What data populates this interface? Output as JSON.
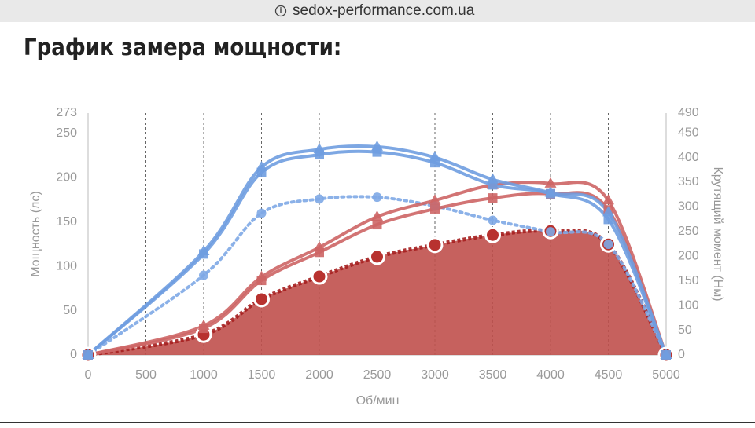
{
  "browser": {
    "url": "sedox-performance.com.ua"
  },
  "chart_data": {
    "type": "line",
    "title": "График замера мощности:",
    "x_label": "Об/мин",
    "y_label": "Мощность (лс)",
    "y2_label": "Крутящий момент (Нм)",
    "x": [
      0,
      1000,
      1500,
      2000,
      2500,
      3000,
      3500,
      4000,
      4500,
      5000
    ],
    "xlim": [
      0,
      5000
    ],
    "xticks": [
      0,
      500,
      1000,
      1500,
      2000,
      2500,
      3000,
      3500,
      4000,
      4500,
      5000
    ],
    "ylim": [
      0,
      273
    ],
    "yticks": [
      0,
      50,
      100,
      150,
      200,
      250,
      273
    ],
    "y2lim": [
      0,
      490
    ],
    "y2ticks": [
      0,
      50,
      100,
      150,
      200,
      250,
      300,
      350,
      400,
      450,
      490
    ],
    "grid": true,
    "series": [
      {
        "color": "#c0504d",
        "axis": "y2",
        "marker": "circle",
        "dash": true,
        "fill": true,
        "values": [
          0,
          41,
          113,
          159,
          199,
          223,
          243,
          251,
          224,
          0
        ]
      },
      {
        "color": "#7ea8e6",
        "marker": "circle",
        "dash": true,
        "values": [
          0,
          90,
          160,
          176,
          178,
          168,
          152,
          139,
          125,
          0
        ]
      },
      {
        "color": "#cd6565",
        "axis": "y2",
        "marker": "square",
        "values": [
          0,
          54,
          151,
          208,
          264,
          296,
          318,
          326,
          294,
          0
        ]
      },
      {
        "color": "#cd6565",
        "axis": "y2",
        "marker": "triangle",
        "values": [
          0,
          59,
          158,
          218,
          280,
          313,
          344,
          347,
          313,
          0
        ]
      },
      {
        "color": "#6f9de0",
        "marker": "square",
        "values": [
          0,
          114,
          206,
          226,
          229,
          217,
          192,
          182,
          153,
          0
        ]
      },
      {
        "color": "#6f9de0",
        "marker": "triangle",
        "values": [
          0,
          117,
          212,
          232,
          235,
          223,
          198,
          183,
          161,
          0
        ]
      }
    ]
  }
}
